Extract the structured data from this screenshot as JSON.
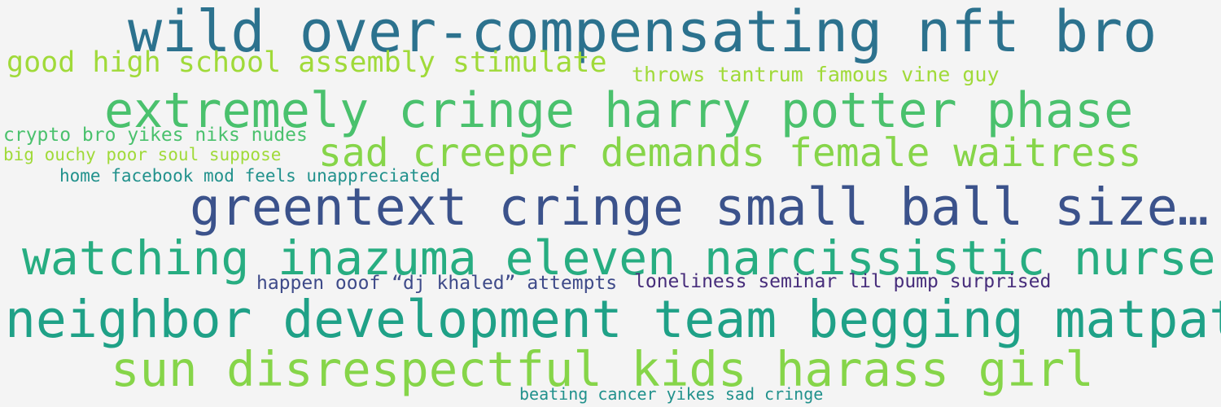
{
  "words": [
    {
      "text": "wild over-compensating nft bro",
      "color": "#2c728e"
    },
    {
      "text": "good high school assembly stimulate",
      "color": "#a0da39"
    },
    {
      "text": "throws tantrum famous vine guy",
      "color": "#a0da39"
    },
    {
      "text": "extremely cringe harry potter phase",
      "color": "#4ac16d"
    },
    {
      "text": "crypto bro yikes niks nudes",
      "color": "#4ac16d"
    },
    {
      "text": "big ouchy poor soul suppose",
      "color": "#a0da39"
    },
    {
      "text": "sad creeper demands female waitress",
      "color": "#86d549"
    },
    {
      "text": "home facebook mod feels unappreciated",
      "color": "#21918c"
    },
    {
      "text": "greentext cringe small ball size…",
      "color": "#3b528b"
    },
    {
      "text": "watching inazuma eleven narcissistic nurse",
      "color": "#27ad81"
    },
    {
      "text": "happen ooof “dj khaled” attempts",
      "color": "#3e4a89"
    },
    {
      "text": "loneliness seminar lil pump surprised",
      "color": "#472d7b"
    },
    {
      "text": "neighbor development team begging matpat",
      "color": "#1fa187"
    },
    {
      "text": "sun disrespectful kids harass girl",
      "color": "#86d549"
    },
    {
      "text": "beating cancer yikes sad cringe",
      "color": "#21918c"
    }
  ]
}
